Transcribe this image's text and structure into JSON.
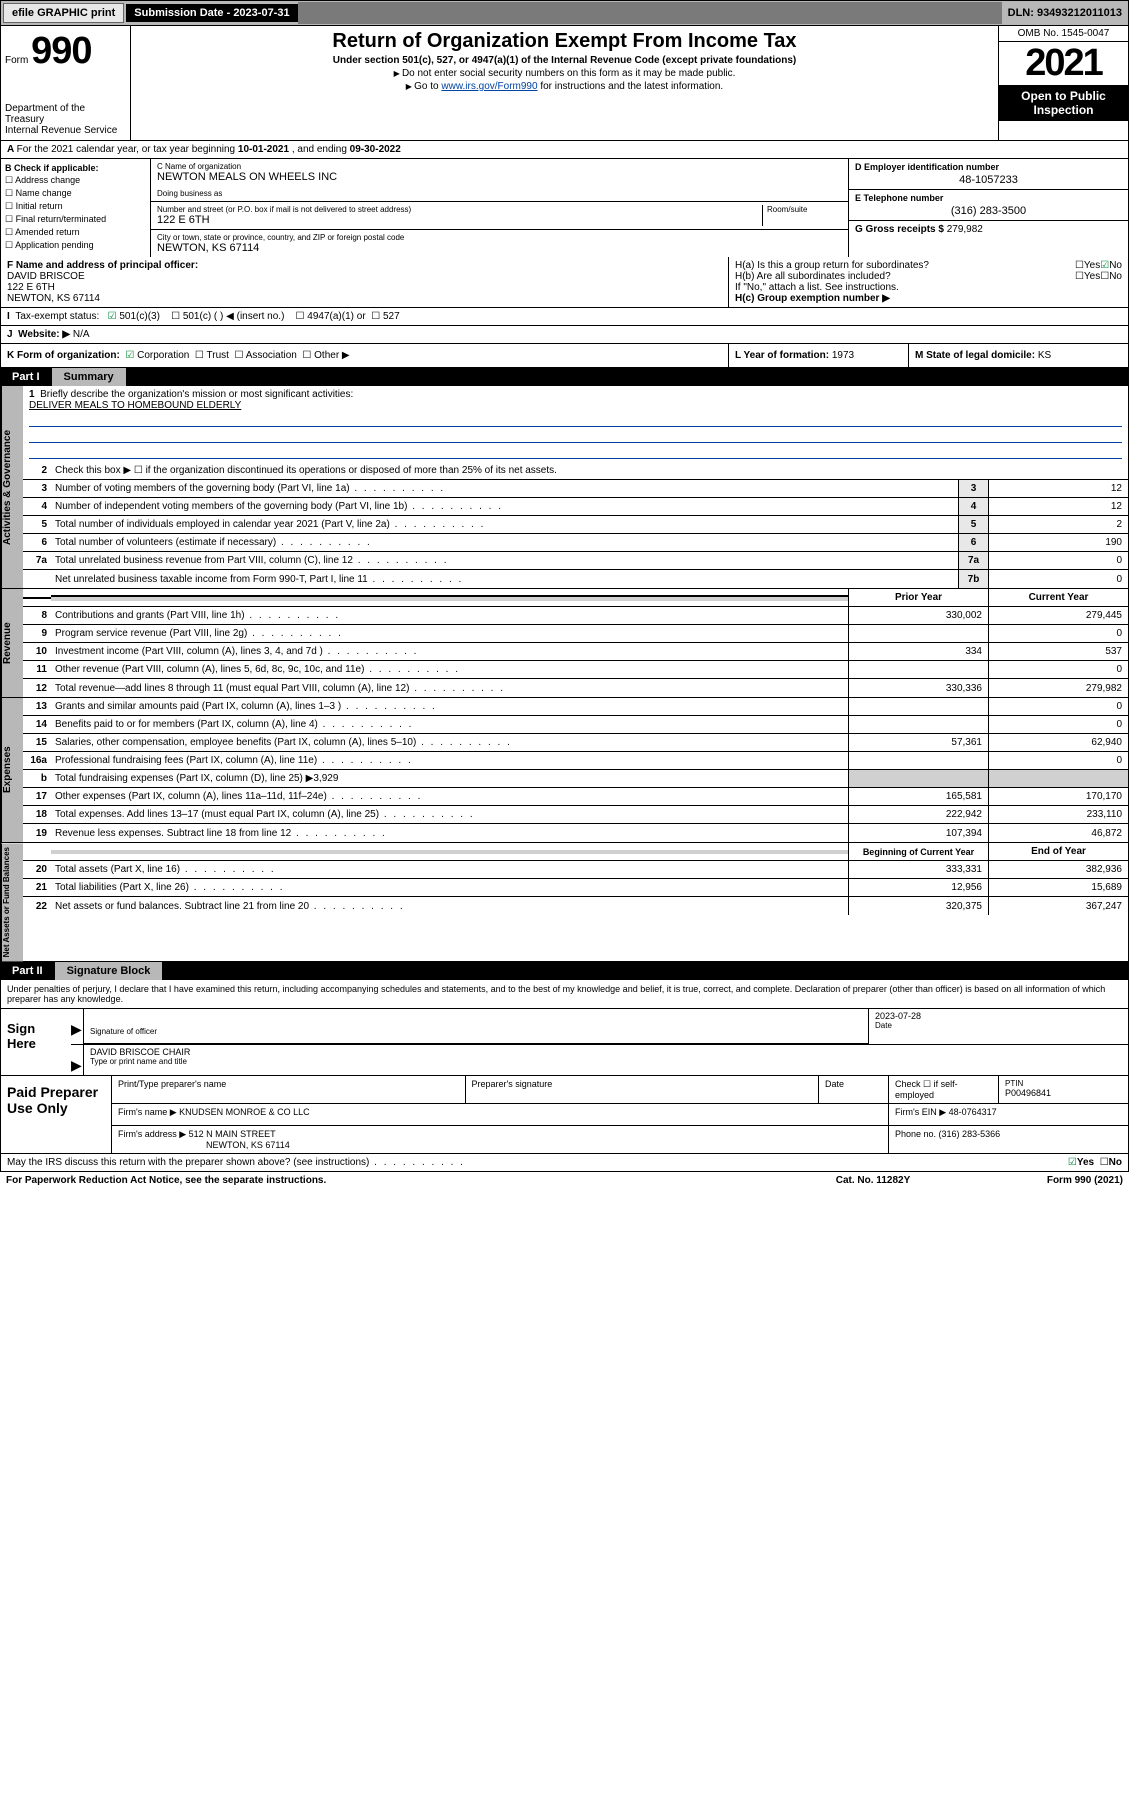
{
  "topbar": {
    "efile": "efile GRAPHIC print",
    "submission_label": "Submission Date - 2023-07-31",
    "dln_label": "DLN: 93493212011013"
  },
  "header": {
    "form_prefix": "Form",
    "form_number": "990",
    "title": "Return of Organization Exempt From Income Tax",
    "subtitle": "Under section 501(c), 527, or 4947(a)(1) of the Internal Revenue Code (except private foundations)",
    "note1": "Do not enter social security numbers on this form as it may be made public.",
    "note2_prefix": "Go to ",
    "note2_link": "www.irs.gov/Form990",
    "note2_suffix": " for instructions and the latest information.",
    "dept": "Department of the Treasury\nInternal Revenue Service",
    "omb": "OMB No. 1545-0047",
    "year": "2021",
    "open": "Open to Public Inspection"
  },
  "row_a": {
    "text_prefix": "For the 2021 calendar year, or tax year beginning ",
    "begin": "10-01-2021",
    "mid": " , and ending ",
    "end": "09-30-2022"
  },
  "col_b": {
    "label": "B Check if applicable:",
    "items": [
      "Address change",
      "Name change",
      "Initial return",
      "Final return/terminated",
      "Amended return",
      "Application pending"
    ]
  },
  "col_c": {
    "name_label": "C Name of organization",
    "name": "NEWTON MEALS ON WHEELS INC",
    "dba_label": "Doing business as",
    "dba": "",
    "addr_label": "Number and street (or P.O. box if mail is not delivered to street address)",
    "room_label": "Room/suite",
    "addr": "122 E 6TH",
    "city_label": "City or town, state or province, country, and ZIP or foreign postal code",
    "city": "NEWTON, KS  67114"
  },
  "col_d": {
    "ein_label": "D Employer identification number",
    "ein": "48-1057233",
    "phone_label": "E Telephone number",
    "phone": "(316) 283-3500",
    "gross_label": "G Gross receipts $ ",
    "gross": "279,982"
  },
  "row_f": {
    "label": "F Name and address of principal officer:",
    "name": "DAVID BRISCOE",
    "addr1": "122 E 6TH",
    "addr2": "NEWTON, KS  67114"
  },
  "row_h": {
    "ha_label": "H(a)  Is this a group return for subordinates?",
    "hb_label": "H(b)  Are all subordinates included?",
    "hb_note": "If \"No,\" attach a list. See instructions.",
    "hc_label": "H(c)  Group exemption number ▶",
    "yes": "Yes",
    "no": "No"
  },
  "row_i": {
    "label": "Tax-exempt status:",
    "opts": [
      "501(c)(3)",
      "501(c) (   ) ◀ (insert no.)",
      "4947(a)(1) or",
      "527"
    ]
  },
  "row_j": {
    "label": "Website: ▶",
    "val": "N/A"
  },
  "row_k": {
    "label": "K Form of organization:",
    "opts": [
      "Corporation",
      "Trust",
      "Association",
      "Other ▶"
    ],
    "l_label": "L Year of formation: ",
    "l_val": "1973",
    "m_label": "M State of legal domicile: ",
    "m_val": "KS"
  },
  "part1": {
    "label": "Part I",
    "title": "Summary"
  },
  "summary": {
    "line1_label": "Briefly describe the organization's mission or most significant activities:",
    "line1_text": "DELIVER MEALS TO HOMEBOUND ELDERLY",
    "line2": "Check this box ▶ ☐  if the organization discontinued its operations or disposed of more than 25% of its net assets.",
    "lines": [
      {
        "n": "3",
        "t": "Number of voting members of the governing body (Part VI, line 1a)",
        "box": "3",
        "v": "12"
      },
      {
        "n": "4",
        "t": "Number of independent voting members of the governing body (Part VI, line 1b)",
        "box": "4",
        "v": "12"
      },
      {
        "n": "5",
        "t": "Total number of individuals employed in calendar year 2021 (Part V, line 2a)",
        "box": "5",
        "v": "2"
      },
      {
        "n": "6",
        "t": "Total number of volunteers (estimate if necessary)",
        "box": "6",
        "v": "190"
      },
      {
        "n": "7a",
        "t": "Total unrelated business revenue from Part VIII, column (C), line 12",
        "box": "7a",
        "v": "0"
      },
      {
        "n": "",
        "t": "Net unrelated business taxable income from Form 990-T, Part I, line 11",
        "box": "7b",
        "v": "0"
      }
    ],
    "col_hdr_prior": "Prior Year",
    "col_hdr_current": "Current Year",
    "rev": [
      {
        "n": "8",
        "t": "Contributions and grants (Part VIII, line 1h)",
        "p": "330,002",
        "c": "279,445"
      },
      {
        "n": "9",
        "t": "Program service revenue (Part VIII, line 2g)",
        "p": "",
        "c": "0"
      },
      {
        "n": "10",
        "t": "Investment income (Part VIII, column (A), lines 3, 4, and 7d )",
        "p": "334",
        "c": "537"
      },
      {
        "n": "11",
        "t": "Other revenue (Part VIII, column (A), lines 5, 6d, 8c, 9c, 10c, and 11e)",
        "p": "",
        "c": "0"
      },
      {
        "n": "12",
        "t": "Total revenue—add lines 8 through 11 (must equal Part VIII, column (A), line 12)",
        "p": "330,336",
        "c": "279,982"
      }
    ],
    "exp": [
      {
        "n": "13",
        "t": "Grants and similar amounts paid (Part IX, column (A), lines 1–3 )",
        "p": "",
        "c": "0"
      },
      {
        "n": "14",
        "t": "Benefits paid to or for members (Part IX, column (A), line 4)",
        "p": "",
        "c": "0"
      },
      {
        "n": "15",
        "t": "Salaries, other compensation, employee benefits (Part IX, column (A), lines 5–10)",
        "p": "57,361",
        "c": "62,940"
      },
      {
        "n": "16a",
        "t": "Professional fundraising fees (Part IX, column (A), line 11e)",
        "p": "",
        "c": "0"
      },
      {
        "n": "b",
        "t": "Total fundraising expenses (Part IX, column (D), line 25) ▶3,929",
        "p": "",
        "c": "",
        "shaded": true
      },
      {
        "n": "17",
        "t": "Other expenses (Part IX, column (A), lines 11a–11d, 11f–24e)",
        "p": "165,581",
        "c": "170,170"
      },
      {
        "n": "18",
        "t": "Total expenses. Add lines 13–17 (must equal Part IX, column (A), line 25)",
        "p": "222,942",
        "c": "233,110"
      },
      {
        "n": "19",
        "t": "Revenue less expenses. Subtract line 18 from line 12",
        "p": "107,394",
        "c": "46,872"
      }
    ],
    "na_hdr_begin": "Beginning of Current Year",
    "na_hdr_end": "End of Year",
    "na": [
      {
        "n": "20",
        "t": "Total assets (Part X, line 16)",
        "p": "333,331",
        "c": "382,936"
      },
      {
        "n": "21",
        "t": "Total liabilities (Part X, line 26)",
        "p": "12,956",
        "c": "15,689"
      },
      {
        "n": "22",
        "t": "Net assets or fund balances. Subtract line 21 from line 20",
        "p": "320,375",
        "c": "367,247"
      }
    ]
  },
  "part2": {
    "label": "Part II",
    "title": "Signature Block"
  },
  "sig": {
    "intro": "Under penalties of perjury, I declare that I have examined this return, including accompanying schedules and statements, and to the best of my knowledge and belief, it is true, correct, and complete. Declaration of preparer (other than officer) is based on all information of which preparer has any knowledge.",
    "here": "Sign Here",
    "officer_sig": "Signature of officer",
    "date_label": "Date",
    "date": "2023-07-28",
    "name_title": "DAVID BRISCOE CHAIR",
    "name_title_label": "Type or print name and title"
  },
  "pp": {
    "label": "Paid Preparer Use Only",
    "h1": "Print/Type preparer's name",
    "h2": "Preparer's signature",
    "h3": "Date",
    "h4": "Check ☐ if self-employed",
    "h5_label": "PTIN",
    "h5": "P00496841",
    "firm_name_label": "Firm's name    ▶ ",
    "firm_name": "KNUDSEN MONROE & CO LLC",
    "firm_ein_label": "Firm's EIN ▶ ",
    "firm_ein": "48-0764317",
    "firm_addr_label": "Firm's address ▶ ",
    "firm_addr1": "512 N MAIN STREET",
    "firm_addr2": "NEWTON, KS  67114",
    "phone_label": "Phone no. ",
    "phone": "(316) 283-5366"
  },
  "discuss": {
    "text": "May the IRS discuss this return with the preparer shown above? (see instructions)",
    "yes": "Yes",
    "no": "No"
  },
  "footer": {
    "left": "For Paperwork Reduction Act Notice, see the separate instructions.",
    "mid": "Cat. No. 11282Y",
    "right": "Form 990 (2021)"
  }
}
